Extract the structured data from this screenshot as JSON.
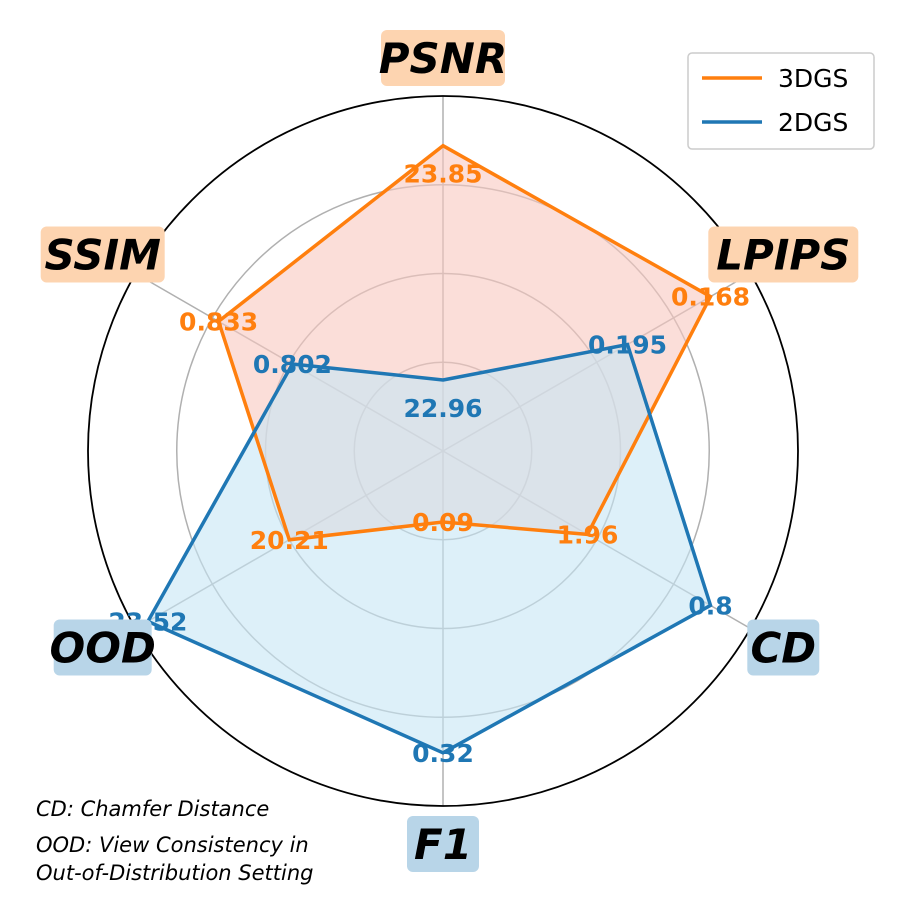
{
  "chart_data": {
    "type": "radar",
    "axes": [
      {
        "label": "PSNR",
        "group": "orange"
      },
      {
        "label": "LPIPS",
        "group": "orange"
      },
      {
        "label": "CD",
        "group": "blue"
      },
      {
        "label": "F1",
        "group": "blue"
      },
      {
        "label": "OOD",
        "group": "blue"
      },
      {
        "label": "SSIM",
        "group": "orange"
      }
    ],
    "radial_range": [
      0,
      1
    ],
    "grid": true,
    "legend_position": "top-right",
    "series": [
      {
        "name": "3DGS",
        "color": "#ff7f0e",
        "fill": "#f8c8c0",
        "scores": [
          0.86,
          0.87,
          0.47,
          0.2,
          0.5,
          0.73
        ],
        "labels": [
          "23.85",
          "0.168",
          "1.96",
          "0.09",
          "20.21",
          "0.833"
        ]
      },
      {
        "name": "2DGS",
        "color": "#1f77b4",
        "fill": "#c7e6f5",
        "scores": [
          0.2,
          0.6,
          0.87,
          0.85,
          0.96,
          0.49
        ],
        "labels": [
          "22.96",
          "0.195",
          "0.8",
          "0.32",
          "23.52",
          "0.802"
        ]
      }
    ]
  },
  "colors": {
    "orange_axis_bg": "#fdd4b0",
    "blue_axis_bg": "#b8d5e8",
    "grid": "#b0b0b0"
  },
  "notes": [
    "CD: Chamfer Distance",
    "OOD: View Consistency in",
    "Out-of-Distribution Setting"
  ]
}
